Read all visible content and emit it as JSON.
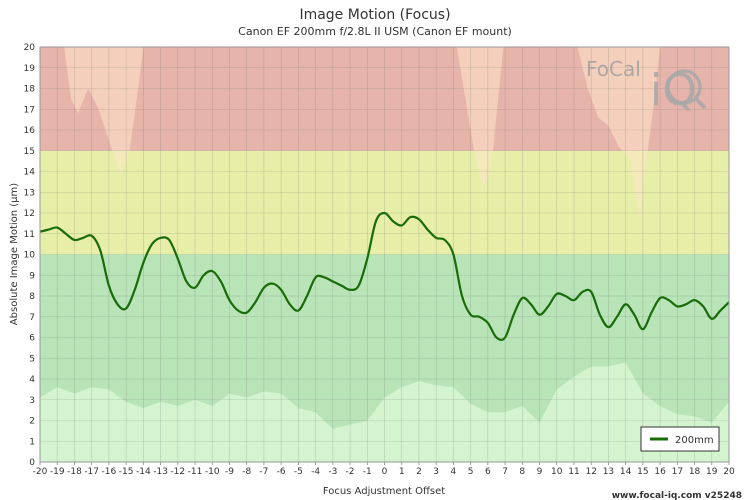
{
  "chart_data": {
    "type": "line",
    "title": "Image Motion (Focus)",
    "subtitle": "Canon EF 200mm f/2.8L II USM (Canon EF mount)",
    "xlabel": "Focus Adjustment Offset",
    "ylabel": "Absolute Image Motion (µm)",
    "xlim": [
      -20,
      20
    ],
    "ylim": [
      0,
      20
    ],
    "x_ticks": [
      -20,
      -19,
      -18,
      -17,
      -16,
      -15,
      -14,
      -13,
      -12,
      -11,
      -10,
      -9,
      -8,
      -7,
      -6,
      -5,
      -4,
      -3,
      -2,
      -1,
      0,
      1,
      2,
      3,
      4,
      5,
      6,
      7,
      8,
      9,
      10,
      11,
      12,
      13,
      14,
      15,
      16,
      17,
      18,
      19,
      20
    ],
    "y_ticks": [
      0,
      1,
      2,
      3,
      4,
      5,
      6,
      7,
      8,
      9,
      10,
      11,
      12,
      13,
      14,
      15,
      16,
      17,
      18,
      19,
      20
    ],
    "grid": true,
    "legend_position": "bottom-right",
    "bands": [
      {
        "from": 0,
        "to": 10,
        "color": "#b8e4b8"
      },
      {
        "from": 10,
        "to": 15,
        "color": "#e6eea8"
      },
      {
        "from": 15,
        "to": 20,
        "color": "#e6b4aa"
      }
    ],
    "series": [
      {
        "name": "200mm",
        "color": "#1a6b0a",
        "x": [
          -20,
          -19.5,
          -19,
          -18.5,
          -18,
          -17.5,
          -17,
          -16.5,
          -16,
          -15.5,
          -15,
          -14.5,
          -14,
          -13.5,
          -13,
          -12.5,
          -12,
          -11.5,
          -11,
          -10.5,
          -10,
          -9.5,
          -9,
          -8.5,
          -8,
          -7.5,
          -7,
          -6.5,
          -6,
          -5.5,
          -5,
          -4.5,
          -4,
          -3.5,
          -3,
          -2.5,
          -2,
          -1.5,
          -1,
          -0.5,
          0,
          0.5,
          1,
          1.5,
          2,
          2.5,
          3,
          3.5,
          4,
          4.5,
          5,
          5.5,
          6,
          6.5,
          7,
          7.5,
          8,
          8.5,
          9,
          9.5,
          10,
          10.5,
          11,
          11.5,
          12,
          12.5,
          13,
          13.5,
          14,
          14.5,
          15,
          15.5,
          16,
          16.5,
          17,
          17.5,
          18,
          18.5,
          19,
          19.5,
          20
        ],
        "y": [
          11.1,
          11.2,
          11.3,
          11.0,
          10.7,
          10.8,
          10.9,
          10.2,
          8.5,
          7.6,
          7.4,
          8.3,
          9.6,
          10.5,
          10.8,
          10.7,
          9.8,
          8.7,
          8.4,
          9.0,
          9.2,
          8.7,
          7.8,
          7.3,
          7.2,
          7.7,
          8.4,
          8.6,
          8.3,
          7.6,
          7.3,
          8.0,
          8.9,
          8.9,
          8.7,
          8.5,
          8.3,
          8.5,
          9.8,
          11.6,
          12.0,
          11.6,
          11.4,
          11.8,
          11.7,
          11.2,
          10.8,
          10.7,
          10.0,
          8.0,
          7.1,
          7.0,
          6.7,
          6.0,
          6.0,
          7.1,
          7.9,
          7.6,
          7.1,
          7.5,
          8.1,
          8.0,
          7.8,
          8.2,
          8.2,
          7.1,
          6.5,
          7.0,
          7.6,
          7.1,
          6.4,
          7.2,
          7.9,
          7.8,
          7.5,
          7.6,
          7.8,
          7.5,
          6.9,
          7.3,
          7.7
        ]
      }
    ]
  },
  "footer": "www.focal-iq.com  v25248",
  "logo": {
    "text_top": "FoCal",
    "text_bottom": "iQ"
  }
}
